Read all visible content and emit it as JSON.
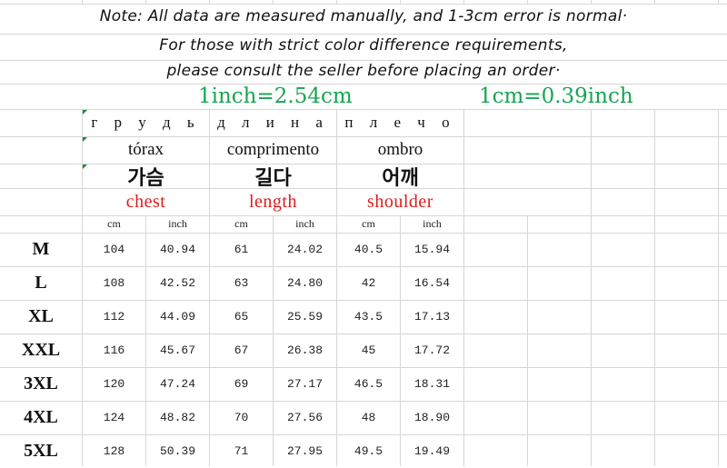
{
  "notes": [
    "Note: All data are measured manually, and 1-3cm error is normal·",
    "For those with strict color difference requirements,",
    "please consult the seller before placing an order·"
  ],
  "conversions": [
    "1inch=2.54cm",
    "1cm=0.39inch"
  ],
  "header": {
    "russian": [
      "г р у д ь",
      "д л и н а",
      "п л е ч о"
    ],
    "portuguese": [
      "tórax",
      "comprimento",
      "ombro"
    ],
    "korean": [
      "가슴",
      "길다",
      "어깨"
    ],
    "english": [
      "chest",
      "length",
      "shoulder"
    ],
    "units": [
      "cm",
      "inch",
      "cm",
      "inch",
      "cm",
      "inch"
    ]
  },
  "colors": {
    "conversion": "#17a552",
    "english_header": "#e01b1b"
  },
  "rows": [
    {
      "size": "M",
      "values": [
        "104",
        "40.94",
        "61",
        "24.02",
        "40.5",
        "15.94"
      ]
    },
    {
      "size": "L",
      "values": [
        "108",
        "42.52",
        "63",
        "24.80",
        "42",
        "16.54"
      ]
    },
    {
      "size": "XL",
      "values": [
        "112",
        "44.09",
        "65",
        "25.59",
        "43.5",
        "17.13"
      ]
    },
    {
      "size": "XXL",
      "values": [
        "116",
        "45.67",
        "67",
        "26.38",
        "45",
        "17.72"
      ]
    },
    {
      "size": "3XL",
      "values": [
        "120",
        "47.24",
        "69",
        "27.17",
        "46.5",
        "18.31"
      ]
    },
    {
      "size": "4XL",
      "values": [
        "124",
        "48.82",
        "70",
        "27.56",
        "48",
        "18.90"
      ]
    },
    {
      "size": "5XL",
      "values": [
        "128",
        "50.39",
        "71",
        "27.95",
        "49.5",
        "19.49"
      ]
    }
  ]
}
